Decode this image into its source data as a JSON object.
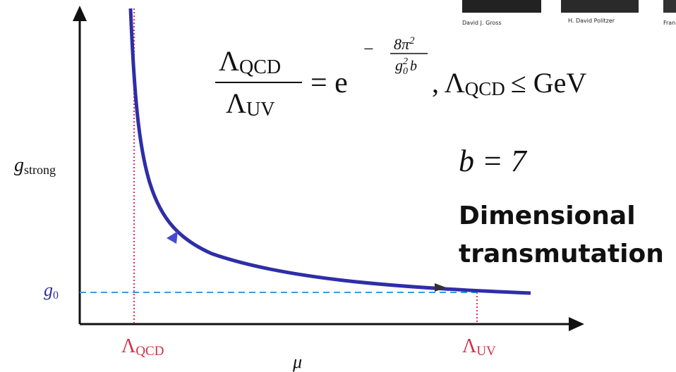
{
  "photo_captions": [
    "David J. Gross",
    "H. David Politzer",
    "Fran"
  ],
  "formula": {
    "num": "Λ",
    "num_sub": "QCD",
    "den": "Λ",
    "den_sub": "UV",
    "eq": "= e",
    "exp_sign": "−",
    "exp_num": "8π",
    "exp_num_pow": "2",
    "exp_den": "g",
    "exp_den_sub": "0",
    "exp_den_pow": "2",
    "exp_den_b": "b",
    "rhs": ", Λ",
    "rhs_sub": "QCD",
    "rhs_rest": "≤  GeV"
  },
  "b_equation": "b = 7",
  "heading": [
    "Dimensional",
    "transmutation"
  ],
  "axes": {
    "y_label": "g",
    "y_label_sub": "strong",
    "g0": "g",
    "g0_sub": "0",
    "x_label": "μ",
    "lambda_qcd": "Λ",
    "lambda_qcd_sub": "QCD",
    "lambda_uv": "Λ",
    "lambda_uv_sub": "UV"
  }
}
